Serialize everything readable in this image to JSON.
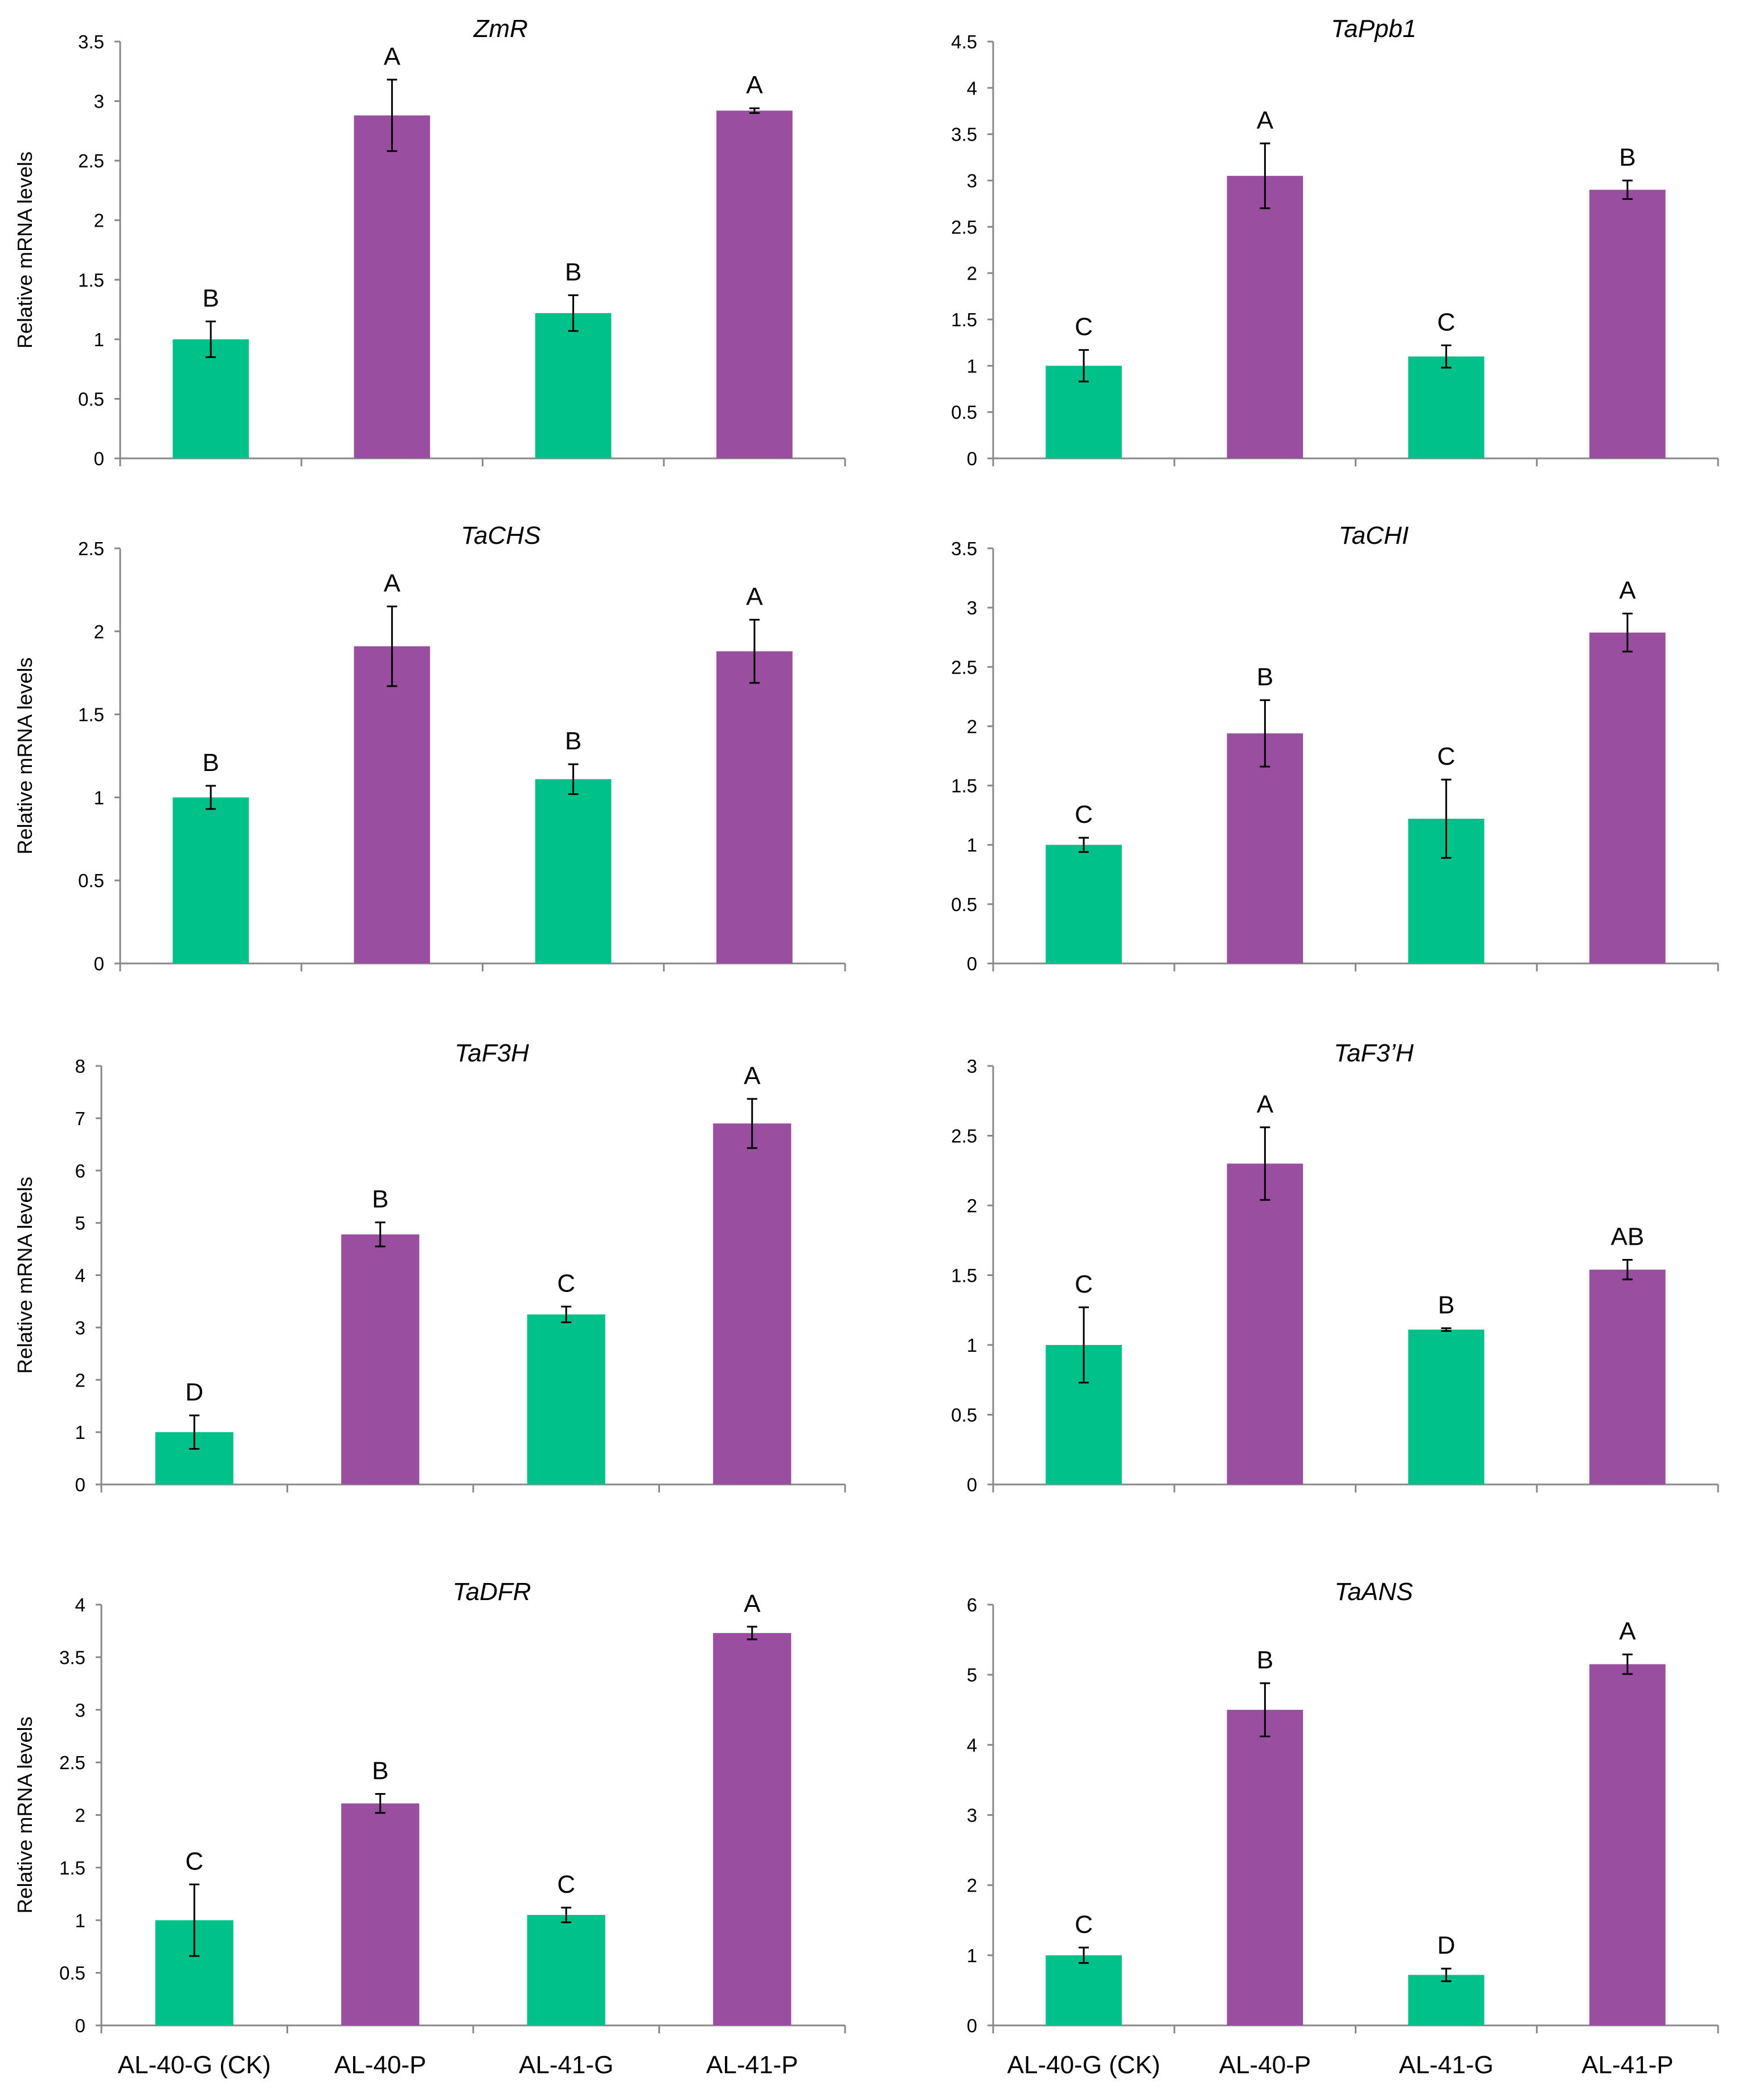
{
  "colors": {
    "green": "#00c18a",
    "purple": "#9a4ea0",
    "axis": "#888888",
    "errorbar": "#000000"
  },
  "chart_data": [
    {
      "type": "bar",
      "title": "ZmR",
      "ylabel": "Relative mRNA levels",
      "categories": [
        "AL-40-G (CK)",
        "AL-40-P",
        "AL-41-G",
        "AL-41-P"
      ],
      "values": [
        1.0,
        2.88,
        1.22,
        2.92
      ],
      "errors": [
        0.15,
        0.3,
        0.15,
        0.02
      ],
      "letters": [
        "B",
        "A",
        "B",
        "A"
      ],
      "ylim": [
        0,
        3.5
      ],
      "ticks": [
        "0",
        "0.5",
        "1",
        "1.5",
        "2",
        "2.5",
        "3",
        "3.5"
      ]
    },
    {
      "type": "bar",
      "title": "TaPpb1",
      "ylabel": "",
      "categories": [
        "AL-40-G (CK)",
        "AL-40-P",
        "AL-41-G",
        "AL-41-P"
      ],
      "values": [
        1.0,
        3.05,
        1.1,
        2.9
      ],
      "errors": [
        0.17,
        0.35,
        0.12,
        0.1
      ],
      "letters": [
        "C",
        "A",
        "C",
        "B"
      ],
      "ylim": [
        0,
        4.5
      ],
      "ticks": [
        "0",
        "0.5",
        "1",
        "1.5",
        "2",
        "2.5",
        "3",
        "3.5",
        "4",
        "4.5"
      ]
    },
    {
      "type": "bar",
      "title": "TaCHS",
      "ylabel": "Relative mRNA levels",
      "categories": [
        "AL-40-G (CK)",
        "AL-40-P",
        "AL-41-G",
        "AL-41-P"
      ],
      "values": [
        1.0,
        1.91,
        1.11,
        1.88
      ],
      "errors": [
        0.07,
        0.24,
        0.09,
        0.19
      ],
      "letters": [
        "B",
        "A",
        "B",
        "A"
      ],
      "ylim": [
        0,
        2.5
      ],
      "ticks": [
        "0",
        "0.5",
        "1",
        "1.5",
        "2",
        "2.5"
      ]
    },
    {
      "type": "bar",
      "title": "TaCHI",
      "ylabel": "",
      "categories": [
        "AL-40-G (CK)",
        "AL-40-P",
        "AL-41-G",
        "AL-41-P"
      ],
      "values": [
        1.0,
        1.94,
        1.22,
        2.79
      ],
      "errors": [
        0.06,
        0.28,
        0.33,
        0.16
      ],
      "letters": [
        "C",
        "B",
        "C",
        "A"
      ],
      "ylim": [
        0,
        3.5
      ],
      "ticks": [
        "0",
        "0.5",
        "1",
        "1.5",
        "2",
        "2.5",
        "3",
        "3.5"
      ]
    },
    {
      "type": "bar",
      "title": "TaF3H",
      "ylabel": "Relative mRNA levels",
      "categories": [
        "AL-40-G (CK)",
        "AL-40-P",
        "AL-41-G",
        "AL-41-P"
      ],
      "values": [
        1.0,
        4.78,
        3.25,
        6.9
      ],
      "errors": [
        0.32,
        0.23,
        0.15,
        0.47
      ],
      "letters": [
        "D",
        "B",
        "C",
        "A"
      ],
      "ylim": [
        0,
        8
      ],
      "ticks": [
        "0",
        "1",
        "2",
        "3",
        "4",
        "5",
        "6",
        "7",
        "8"
      ]
    },
    {
      "type": "bar",
      "title": "TaF3’H",
      "ylabel": "",
      "categories": [
        "AL-40-G (CK)",
        "AL-40-P",
        "AL-41-G",
        "AL-41-P"
      ],
      "values": [
        1.0,
        2.3,
        1.11,
        1.54
      ],
      "errors": [
        0.27,
        0.26,
        0.01,
        0.07
      ],
      "letters": [
        "C",
        "A",
        "B",
        "AB"
      ],
      "ylim": [
        0,
        3
      ],
      "ticks": [
        "0",
        "0.5",
        "1",
        "1.5",
        "2",
        "2.5",
        "3"
      ]
    },
    {
      "type": "bar",
      "title": "TaDFR",
      "ylabel": "Relative mRNA levels",
      "categories": [
        "AL-40-G (CK)",
        "AL-40-P",
        "AL-41-G",
        "AL-41-P"
      ],
      "values": [
        1.0,
        2.11,
        1.05,
        3.73
      ],
      "errors": [
        0.34,
        0.09,
        0.07,
        0.06
      ],
      "letters": [
        "C",
        "B",
        "C",
        "A"
      ],
      "ylim": [
        0,
        4
      ],
      "ticks": [
        "0",
        "0.5",
        "1",
        "1.5",
        "2",
        "2.5",
        "3",
        "3.5",
        "4"
      ]
    },
    {
      "type": "bar",
      "title": "TaANS",
      "ylabel": "",
      "categories": [
        "AL-40-G (CK)",
        "AL-40-P",
        "AL-41-G",
        "AL-41-P"
      ],
      "values": [
        1.0,
        4.5,
        0.72,
        5.15
      ],
      "errors": [
        0.11,
        0.38,
        0.09,
        0.14
      ],
      "letters": [
        "C",
        "B",
        "D",
        "A"
      ],
      "ylim": [
        0,
        6
      ],
      "ticks": [
        "0",
        "1",
        "2",
        "3",
        "4",
        "5",
        "6"
      ]
    }
  ]
}
